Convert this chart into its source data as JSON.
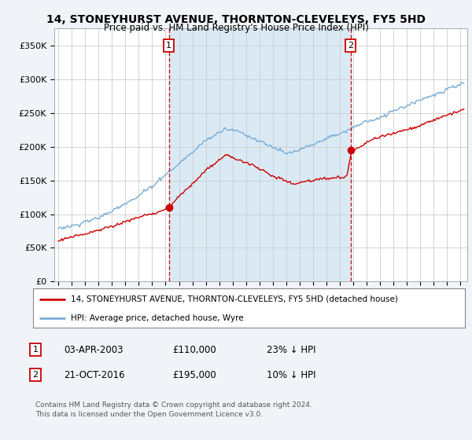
{
  "title": "14, STONEYHURST AVENUE, THORNTON-CLEVELEYS, FY5 5HD",
  "subtitle": "Price paid vs. HM Land Registry's House Price Index (HPI)",
  "legend_line1": "14, STONEYHURST AVENUE, THORNTON-CLEVELEYS, FY5 5HD (detached house)",
  "legend_line2": "HPI: Average price, detached house, Wyre",
  "annotation1_date": "03-APR-2003",
  "annotation1_price": "£110,000",
  "annotation1_hpi": "23% ↓ HPI",
  "annotation2_date": "21-OCT-2016",
  "annotation2_price": "£195,000",
  "annotation2_hpi": "10% ↓ HPI",
  "footnote": "Contains HM Land Registry data © Crown copyright and database right 2024.\nThis data is licensed under the Open Government Licence v3.0.",
  "hpi_color": "#7aadd4",
  "price_color": "#cc0000",
  "vline_color": "#cc0000",
  "background_color": "#f0f4f8",
  "plot_bg_color": "#ffffff",
  "shade_color": "#daeaf5",
  "ylim": [
    0,
    375000
  ],
  "yticks": [
    0,
    50000,
    100000,
    150000,
    200000,
    250000,
    300000,
    350000
  ],
  "ytick_labels": [
    "£0",
    "£50K",
    "£100K",
    "£150K",
    "£200K",
    "£250K",
    "£300K",
    "£350K"
  ],
  "sale1_x": 2003.25,
  "sale1_y": 110000,
  "sale2_x": 2016.8,
  "sale2_y": 195000,
  "xlim_left": 1994.7,
  "xlim_right": 2025.5
}
